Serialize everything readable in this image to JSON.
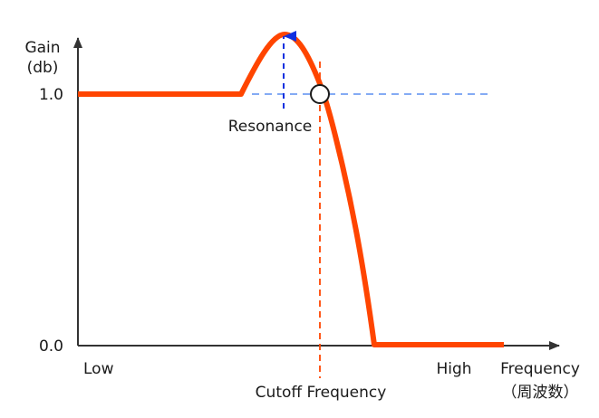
{
  "y_axis": {
    "label_line1": "Gain",
    "label_line2": "(db)"
  },
  "y_ticks": {
    "top": "1.0",
    "bottom": "0.0"
  },
  "x_axis": {
    "label_line1": "Frequency",
    "label_line2": "（周波数）"
  },
  "x_ticks": {
    "low": "Low",
    "high": "High"
  },
  "annotations": {
    "resonance": "Resonance",
    "cutoff": "Cutoff Frequency"
  },
  "colors": {
    "response_curve": "#ff4500",
    "cutoff_line": "#ff4500",
    "reference_line": "#5b8ff0",
    "resonance_arrow": "#1030e0",
    "axis": "#333333"
  }
}
